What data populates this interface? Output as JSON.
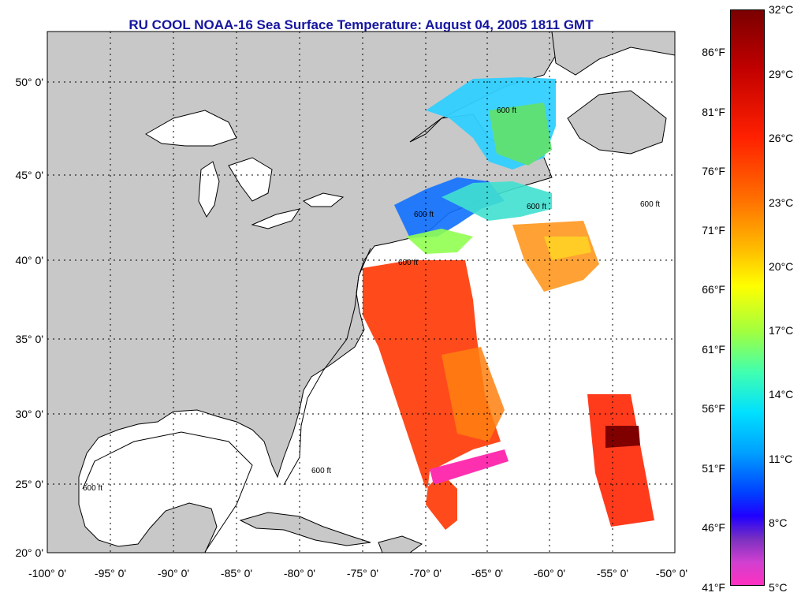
{
  "title": "RU COOL  NOAA-16  Sea Surface Temperature:  August 04, 2005 1811 GMT",
  "axes": {
    "lat_labels": [
      "50° 0'",
      "45° 0'",
      "40° 0'",
      "35° 0'",
      "30° 0'",
      "25° 0'",
      "20° 0'"
    ],
    "lon_labels": [
      "-100° 0'",
      "-95° 0'",
      "-90° 0'",
      "-85° 0'",
      "-80° 0'",
      "-75° 0'",
      "-70° 0'",
      "-65° 0'",
      "-60° 0'",
      "-55° 0'",
      "-50° 0'"
    ]
  },
  "contour_label": "600 ft",
  "colorbar": {
    "celsius": [
      "32°C",
      "29°C",
      "26°C",
      "23°C",
      "20°C",
      "17°C",
      "14°C",
      "11°C",
      "8°C",
      "5°C"
    ],
    "fahrenheit": [
      "86°F",
      "81°F",
      "76°F",
      "71°F",
      "66°F",
      "61°F",
      "56°F",
      "51°F",
      "46°F",
      "41°F"
    ]
  },
  "colors": {
    "land": "#c8c8c8",
    "ocean": "#ffffff",
    "title": "#1515a0",
    "warm_sst": "#ff4010",
    "cool_sst": "#30d0ff"
  }
}
